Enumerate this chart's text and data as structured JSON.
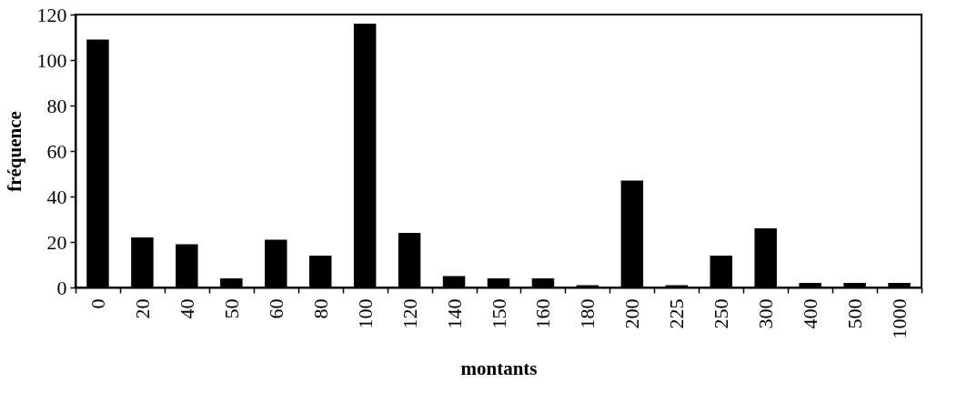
{
  "chart_data": {
    "type": "bar",
    "xlabel": "montants",
    "ylabel": "fréquence",
    "categories": [
      "0",
      "20",
      "40",
      "50",
      "60",
      "80",
      "100",
      "120",
      "140",
      "150",
      "160",
      "180",
      "200",
      "225",
      "250",
      "300",
      "400",
      "500",
      "1000"
    ],
    "values": [
      109,
      22,
      19,
      4,
      21,
      14,
      116,
      24,
      5,
      4,
      4,
      1,
      47,
      1,
      14,
      26,
      2,
      2,
      2
    ],
    "color": "#000000",
    "ylim": [
      0,
      120
    ],
    "yticks": [
      0,
      20,
      40,
      60,
      80,
      100,
      120
    ],
    "grid": false
  }
}
